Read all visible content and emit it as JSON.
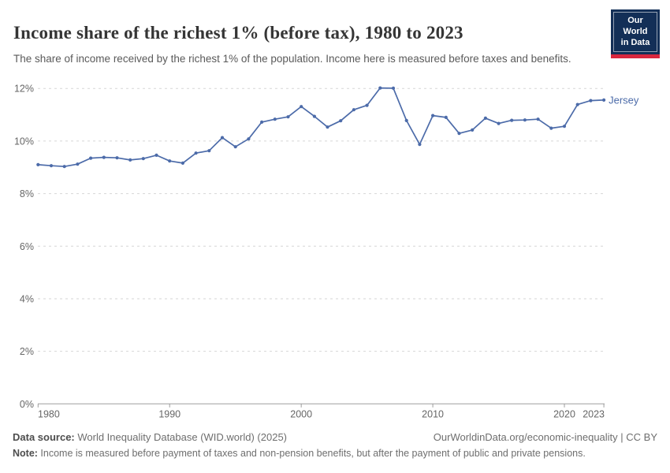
{
  "header": {
    "title": "Income share of the richest 1% (before tax), 1980 to 2023",
    "subtitle": "The share of income received by the richest 1% of the population. Income here is measured before taxes and benefits.",
    "logo": {
      "line1": "Our World",
      "line2": "in Data",
      "bg_color": "#132F57",
      "accent_color": "#D9273E"
    }
  },
  "chart_data": {
    "type": "line",
    "title": "Income share of the richest 1% (before tax), 1980 to 2023",
    "xlabel": "",
    "ylabel": "",
    "xlim": [
      1980,
      2023
    ],
    "ylim": [
      0,
      12
    ],
    "grid": "horizontal-dashed",
    "legend_position": "end-of-line-label",
    "x_ticks": [
      1980,
      1990,
      2000,
      2010,
      2020,
      2023
    ],
    "y_ticks": [
      0,
      2,
      4,
      6,
      8,
      10,
      12
    ],
    "y_tick_suffix": "%",
    "x": [
      1980,
      1981,
      1982,
      1983,
      1984,
      1985,
      1986,
      1987,
      1988,
      1989,
      1990,
      1991,
      1992,
      1993,
      1994,
      1995,
      1996,
      1997,
      1998,
      1999,
      2000,
      2001,
      2002,
      2003,
      2004,
      2005,
      2006,
      2007,
      2008,
      2009,
      2010,
      2011,
      2012,
      2013,
      2014,
      2015,
      2016,
      2017,
      2018,
      2019,
      2020,
      2021,
      2022,
      2023
    ],
    "series": [
      {
        "name": "Jersey",
        "color": "#4C6BA9",
        "values": [
          9.1,
          9.06,
          9.03,
          9.12,
          9.35,
          9.38,
          9.36,
          9.28,
          9.33,
          9.46,
          9.24,
          9.16,
          9.54,
          9.63,
          10.13,
          9.78,
          10.08,
          10.72,
          10.83,
          10.92,
          11.31,
          10.94,
          10.53,
          10.77,
          11.19,
          11.36,
          12.02,
          12.01,
          10.78,
          9.87,
          10.97,
          10.9,
          10.29,
          10.42,
          10.87,
          10.67,
          10.79,
          10.8,
          10.83,
          10.49,
          10.56,
          11.39,
          11.54,
          11.56
        ]
      }
    ],
    "colors": {
      "gridline": "#d6d6d6",
      "axis": "#9d9d9d",
      "tick_label": "#666666"
    }
  },
  "footer": {
    "datasource_label": "Data source:",
    "datasource_text": " World Inequality Database (WID.world) (2025)",
    "license_text": "OurWorldinData.org/economic-inequality | CC BY",
    "note_label": "Note:",
    "note_text": " Income is measured before payment of taxes and non-pension benefits, but after the payment of public and private pensions."
  }
}
